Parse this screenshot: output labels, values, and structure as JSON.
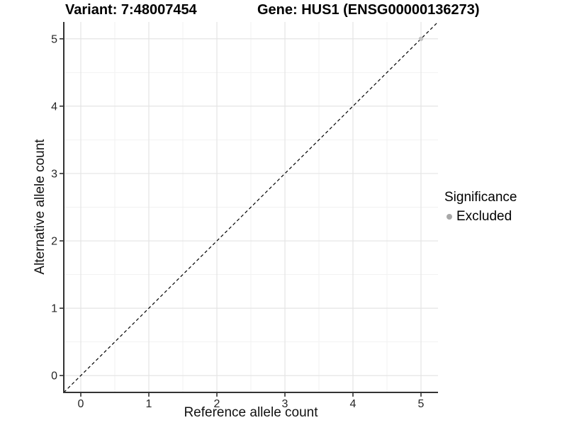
{
  "header": {
    "variant_title": "Variant: 7:48007454",
    "gene_title": "Gene: HUS1 (ENSG00000136273)"
  },
  "chart_data": {
    "type": "scatter",
    "xlabel": "Reference allele count",
    "ylabel": "Alternative allele count",
    "x_ticks": [
      0,
      1,
      2,
      3,
      4,
      5
    ],
    "y_ticks": [
      0,
      1,
      2,
      3,
      4,
      5
    ],
    "xlim": [
      -0.25,
      5.25
    ],
    "ylim": [
      -0.25,
      5.25
    ],
    "grid": {
      "major": true,
      "minor": true
    },
    "identity_line": {
      "slope": 1,
      "intercept": 0,
      "style": "dashed",
      "color": "#000000"
    },
    "points": [
      {
        "x": 5,
        "y": 5,
        "significance": "Excluded"
      }
    ],
    "legend": {
      "title": "Significance",
      "position": "right",
      "entries": [
        {
          "label": "Excluded",
          "color": "#a8a8a8"
        }
      ]
    }
  },
  "colors": {
    "background": "#ffffff",
    "grid_major": "#e4e4e4",
    "grid_minor": "#f1f1f1",
    "axis_line": "#333333",
    "tick_mark": "#333333",
    "tick_label": "#262626",
    "point_excluded": "#c2c2c2"
  }
}
